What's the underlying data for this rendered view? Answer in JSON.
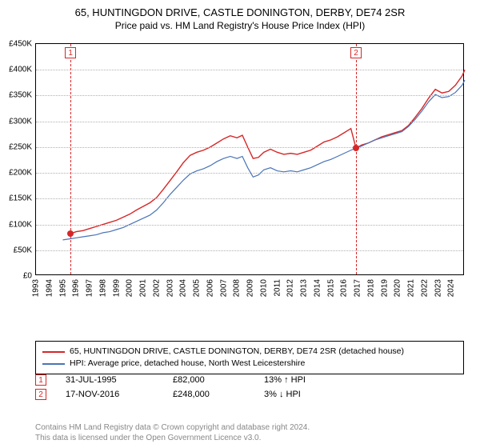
{
  "type": "line",
  "title_main": "65, HUNTINGDON DRIVE, CASTLE DONINGTON, DERBY, DE74 2SR",
  "title_sub": "Price paid vs. HM Land Registry's House Price Index (HPI)",
  "title_fontsize": 13,
  "subtitle_fontsize": 12,
  "background_color": "#ffffff",
  "plot_border_color": "#000000",
  "grid_color": "#b0b0b0",
  "axis_label_fontsize": 10,
  "x": {
    "min": 1993,
    "max": 2025,
    "ticks": [
      1993,
      1994,
      1995,
      1996,
      1997,
      1998,
      1999,
      2000,
      2001,
      2002,
      2003,
      2004,
      2005,
      2006,
      2007,
      2008,
      2009,
      2010,
      2011,
      2012,
      2013,
      2014,
      2015,
      2016,
      2017,
      2018,
      2019,
      2020,
      2021,
      2022,
      2023,
      2024
    ]
  },
  "y": {
    "min": 0,
    "max": 450000,
    "ticks": [
      0,
      50000,
      100000,
      150000,
      200000,
      250000,
      300000,
      350000,
      400000,
      450000
    ],
    "tick_labels": [
      "£0",
      "£50K",
      "£100K",
      "£150K",
      "£200K",
      "£250K",
      "£300K",
      "£350K",
      "£400K",
      "£450K"
    ]
  },
  "series": [
    {
      "name": "65, HUNTINGDON DRIVE, CASTLE DONINGTON, DERBY, DE74 2SR (detached house)",
      "color": "#d62728",
      "width": 1.4,
      "points": [
        [
          1995.58,
          82000
        ],
        [
          1996.0,
          86000
        ],
        [
          1996.5,
          88000
        ],
        [
          1997.0,
          92000
        ],
        [
          1997.5,
          96000
        ],
        [
          1998.0,
          100000
        ],
        [
          1998.5,
          104000
        ],
        [
          1999.0,
          108000
        ],
        [
          1999.5,
          114000
        ],
        [
          2000.0,
          120000
        ],
        [
          2000.5,
          128000
        ],
        [
          2001.0,
          135000
        ],
        [
          2001.5,
          142000
        ],
        [
          2002.0,
          152000
        ],
        [
          2002.5,
          168000
        ],
        [
          2003.0,
          185000
        ],
        [
          2003.5,
          202000
        ],
        [
          2004.0,
          220000
        ],
        [
          2004.5,
          234000
        ],
        [
          2005.0,
          240000
        ],
        [
          2005.5,
          244000
        ],
        [
          2006.0,
          250000
        ],
        [
          2006.5,
          258000
        ],
        [
          2007.0,
          266000
        ],
        [
          2007.5,
          272000
        ],
        [
          2008.0,
          268000
        ],
        [
          2008.4,
          273000
        ],
        [
          2008.8,
          250000
        ],
        [
          2009.2,
          228000
        ],
        [
          2009.6,
          230000
        ],
        [
          2010.0,
          240000
        ],
        [
          2010.5,
          246000
        ],
        [
          2011.0,
          240000
        ],
        [
          2011.5,
          236000
        ],
        [
          2012.0,
          238000
        ],
        [
          2012.5,
          236000
        ],
        [
          2013.0,
          240000
        ],
        [
          2013.5,
          244000
        ],
        [
          2014.0,
          252000
        ],
        [
          2014.5,
          260000
        ],
        [
          2015.0,
          264000
        ],
        [
          2015.5,
          270000
        ],
        [
          2016.0,
          278000
        ],
        [
          2016.5,
          286000
        ],
        [
          2016.88,
          248000
        ],
        [
          2017.3,
          254000
        ],
        [
          2017.8,
          258000
        ],
        [
          2018.3,
          264000
        ],
        [
          2018.8,
          270000
        ],
        [
          2019.3,
          274000
        ],
        [
          2019.8,
          278000
        ],
        [
          2020.3,
          282000
        ],
        [
          2020.8,
          292000
        ],
        [
          2021.3,
          308000
        ],
        [
          2021.8,
          325000
        ],
        [
          2022.3,
          345000
        ],
        [
          2022.8,
          362000
        ],
        [
          2023.3,
          355000
        ],
        [
          2023.8,
          358000
        ],
        [
          2024.3,
          370000
        ],
        [
          2024.8,
          388000
        ],
        [
          2025.0,
          400000
        ]
      ]
    },
    {
      "name": "HPI: Average price, detached house, North West Leicestershire",
      "color": "#4a74b8",
      "width": 1.2,
      "points": [
        [
          1995.0,
          70000
        ],
        [
          1995.5,
          72000
        ],
        [
          1996.0,
          74000
        ],
        [
          1996.5,
          76000
        ],
        [
          1997.0,
          78000
        ],
        [
          1997.5,
          80000
        ],
        [
          1998.0,
          84000
        ],
        [
          1998.5,
          86000
        ],
        [
          1999.0,
          90000
        ],
        [
          1999.5,
          94000
        ],
        [
          2000.0,
          100000
        ],
        [
          2000.5,
          106000
        ],
        [
          2001.0,
          112000
        ],
        [
          2001.5,
          118000
        ],
        [
          2002.0,
          128000
        ],
        [
          2002.5,
          142000
        ],
        [
          2003.0,
          158000
        ],
        [
          2003.5,
          172000
        ],
        [
          2004.0,
          186000
        ],
        [
          2004.5,
          198000
        ],
        [
          2005.0,
          204000
        ],
        [
          2005.5,
          208000
        ],
        [
          2006.0,
          214000
        ],
        [
          2006.5,
          222000
        ],
        [
          2007.0,
          228000
        ],
        [
          2007.5,
          232000
        ],
        [
          2008.0,
          228000
        ],
        [
          2008.4,
          232000
        ],
        [
          2008.8,
          210000
        ],
        [
          2009.2,
          192000
        ],
        [
          2009.6,
          196000
        ],
        [
          2010.0,
          206000
        ],
        [
          2010.5,
          210000
        ],
        [
          2011.0,
          204000
        ],
        [
          2011.5,
          202000
        ],
        [
          2012.0,
          204000
        ],
        [
          2012.5,
          202000
        ],
        [
          2013.0,
          206000
        ],
        [
          2013.5,
          210000
        ],
        [
          2014.0,
          216000
        ],
        [
          2014.5,
          222000
        ],
        [
          2015.0,
          226000
        ],
        [
          2015.5,
          232000
        ],
        [
          2016.0,
          238000
        ],
        [
          2016.5,
          244000
        ],
        [
          2016.88,
          248000
        ],
        [
          2017.3,
          252000
        ],
        [
          2017.8,
          258000
        ],
        [
          2018.3,
          264000
        ],
        [
          2018.8,
          268000
        ],
        [
          2019.3,
          272000
        ],
        [
          2019.8,
          276000
        ],
        [
          2020.3,
          280000
        ],
        [
          2020.8,
          290000
        ],
        [
          2021.3,
          304000
        ],
        [
          2021.8,
          320000
        ],
        [
          2022.3,
          338000
        ],
        [
          2022.8,
          352000
        ],
        [
          2023.3,
          346000
        ],
        [
          2023.8,
          348000
        ],
        [
          2024.3,
          356000
        ],
        [
          2024.8,
          370000
        ],
        [
          2025.0,
          380000
        ]
      ]
    }
  ],
  "markers": [
    {
      "x": 1995.58,
      "y": 82000,
      "color": "#d62728"
    },
    {
      "x": 2016.88,
      "y": 248000,
      "color": "#d62728"
    }
  ],
  "event_lines": [
    {
      "badge": "1",
      "x": 1995.58,
      "color": "#d62728"
    },
    {
      "badge": "2",
      "x": 2016.88,
      "color": "#d62728"
    }
  ],
  "events": [
    {
      "badge": "1",
      "date": "31-JUL-1995",
      "price": "£82,000",
      "delta": "13% ↑ HPI",
      "color": "#d62728"
    },
    {
      "badge": "2",
      "date": "17-NOV-2016",
      "price": "£248,000",
      "delta": "3% ↓ HPI",
      "color": "#d62728"
    }
  ],
  "attrib_line1": "Contains HM Land Registry data © Crown copyright and database right 2024.",
  "attrib_line2": "This data is licensed under the Open Government Licence v3.0.",
  "attrib_color": "#888888"
}
